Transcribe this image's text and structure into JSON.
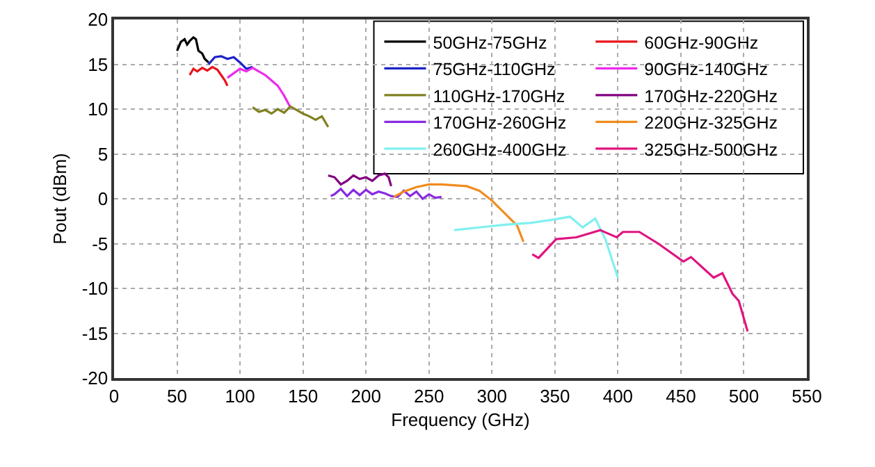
{
  "chart_data": {
    "type": "line",
    "xlabel": "Frequency (GHz)",
    "ylabel": "Pout (dBm)",
    "xlim": [
      0,
      550
    ],
    "ylim": [
      -20,
      20
    ],
    "xticks": [
      0,
      50,
      100,
      150,
      200,
      250,
      300,
      350,
      400,
      450,
      500,
      550
    ],
    "yticks": [
      -20,
      -15,
      -10,
      -5,
      0,
      5,
      10,
      15,
      20
    ],
    "grid": true,
    "legend": "top right",
    "line_style": "solid",
    "marker": "none",
    "series": [
      {
        "name": "50GHz-75GHz",
        "color": "#000000",
        "x": [
          50,
          53,
          56,
          58,
          60,
          63,
          65,
          67,
          70,
          72,
          75
        ],
        "values": [
          16.5,
          17.5,
          17.8,
          17.2,
          17.6,
          18.0,
          17.8,
          16.5,
          16.2,
          15.6,
          15.2
        ]
      },
      {
        "name": "60GHz-90GHz",
        "color": "#e8141a",
        "x": [
          60,
          63,
          66,
          70,
          74,
          78,
          82,
          85,
          88,
          90
        ],
        "values": [
          13.8,
          14.5,
          14.2,
          14.6,
          14.3,
          14.7,
          14.4,
          13.8,
          13.2,
          12.6
        ]
      },
      {
        "name": "75GHz-110GHz",
        "color": "#1c22c8",
        "x": [
          75,
          80,
          85,
          90,
          95,
          100,
          105,
          110
        ],
        "values": [
          15.0,
          15.8,
          15.9,
          15.6,
          15.8,
          15.2,
          14.5,
          14.7
        ]
      },
      {
        "name": "90GHz-140GHz",
        "color": "#ee2aee",
        "x": [
          90,
          95,
          100,
          105,
          110,
          115,
          120,
          125,
          130,
          135,
          140
        ],
        "values": [
          13.5,
          14.0,
          14.5,
          14.2,
          14.6,
          14.2,
          13.8,
          13.2,
          12.6,
          11.5,
          10.2
        ]
      },
      {
        "name": "110GHz-170GHz",
        "color": "#808020",
        "x": [
          110,
          115,
          120,
          125,
          130,
          135,
          140,
          145,
          150,
          155,
          160,
          165,
          170
        ],
        "values": [
          10.2,
          9.7,
          9.9,
          9.5,
          10.0,
          9.6,
          10.3,
          9.9,
          9.5,
          9.2,
          8.8,
          9.2,
          8.0
        ]
      },
      {
        "name": "170GHz-220GHz",
        "color": "#800080",
        "x": [
          170,
          175,
          180,
          185,
          190,
          195,
          200,
          205,
          210,
          215,
          218,
          220
        ],
        "values": [
          2.6,
          2.4,
          1.6,
          2.0,
          2.6,
          2.2,
          2.4,
          2.0,
          2.6,
          2.8,
          2.4,
          1.4
        ]
      },
      {
        "name": "170GHz-260GHz",
        "color": "#8a2be2",
        "x": [
          172,
          175,
          180,
          185,
          190,
          195,
          200,
          205,
          210,
          215,
          220,
          225,
          230,
          235,
          240,
          245,
          250,
          255,
          260
        ],
        "values": [
          0.3,
          0.5,
          1.1,
          0.3,
          1.0,
          0.4,
          1.0,
          0.5,
          0.8,
          0.6,
          0.3,
          0.2,
          0.9,
          0.3,
          0.8,
          0.0,
          0.5,
          0.1,
          0.2
        ]
      },
      {
        "name": "220GHz-325GHz",
        "color": "#f08c1e",
        "x": [
          222,
          230,
          240,
          250,
          260,
          270,
          280,
          290,
          300,
          310,
          320,
          325
        ],
        "values": [
          0.2,
          0.8,
          1.3,
          1.6,
          1.6,
          1.5,
          1.4,
          0.9,
          -0.2,
          -1.6,
          -3.0,
          -4.8
        ]
      },
      {
        "name": "260GHz-400GHz",
        "color": "#80f0f0",
        "x": [
          270,
          290,
          310,
          330,
          350,
          362,
          372,
          382,
          390,
          400
        ],
        "values": [
          -3.5,
          -3.2,
          -2.9,
          -2.7,
          -2.3,
          -2.0,
          -3.2,
          -2.2,
          -4.5,
          -8.8
        ]
      },
      {
        "name": "325GHz-500GHz",
        "color": "#e0147f",
        "x": [
          332,
          337,
          351,
          367,
          386,
          399,
          404,
          417,
          432,
          452,
          458,
          476,
          483,
          491,
          496,
          503
        ],
        "values": [
          -6.2,
          -6.6,
          -4.5,
          -4.3,
          -3.5,
          -4.3,
          -3.7,
          -3.7,
          -5.0,
          -7.0,
          -6.5,
          -8.8,
          -8.3,
          -10.6,
          -11.4,
          -14.8
        ]
      }
    ]
  }
}
